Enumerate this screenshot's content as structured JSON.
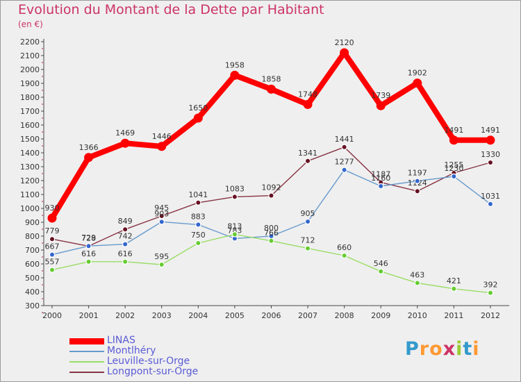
{
  "header": {
    "title": "Evolution du Montant de la Dette par Habitant",
    "subtitle": "(en €)"
  },
  "logo": {
    "text": "Proxiti",
    "letter_colors": [
      "#3399cc",
      "#ff9933",
      "#ff9933",
      "#cc3366",
      "#99cc33",
      "#3399cc",
      "#ff9933"
    ]
  },
  "chart_data": {
    "type": "line",
    "title": "Evolution du Montant de la Dette par Habitant",
    "subtitle": "(en €)",
    "x": [
      "2000",
      "2001",
      "2002",
      "2003",
      "2004",
      "2005",
      "2006",
      "2007",
      "2008",
      "2009",
      "2010",
      "2011",
      "2012"
    ],
    "ylim": [
      300,
      2200
    ],
    "yticks": [
      300,
      400,
      500,
      600,
      700,
      800,
      900,
      1000,
      1100,
      1200,
      1300,
      1400,
      1500,
      1600,
      1700,
      1800,
      1900,
      2000,
      2100,
      2200
    ],
    "grid": false,
    "legend_position": "bottom-left",
    "series": [
      {
        "name": "LINAS",
        "color": "#ff0000",
        "values": [
          930,
          1366,
          1469,
          1446,
          1650,
          1958,
          1858,
          1748,
          2120,
          1739,
          1902,
          1491,
          1491
        ]
      },
      {
        "name": "Montlhéry",
        "color": "#6699cc",
        "marker_color": "#3366cc",
        "values": [
          667,
          729,
          742,
          903,
          883,
          783,
          800,
          905,
          1277,
          1160,
          1197,
          1230,
          1031
        ]
      },
      {
        "name": "Leuville-sur-Orge",
        "color": "#99dd66",
        "marker_color": "#66cc33",
        "values": [
          557,
          616,
          616,
          595,
          750,
          813,
          766,
          712,
          660,
          546,
          463,
          421,
          392
        ]
      },
      {
        "name": "Longpont-sur-Orge",
        "color": "#883344",
        "marker_color": "#661122",
        "values": [
          779,
          728,
          849,
          945,
          1041,
          1083,
          1092,
          1341,
          1441,
          1187,
          1124,
          1255,
          1330
        ]
      }
    ]
  }
}
